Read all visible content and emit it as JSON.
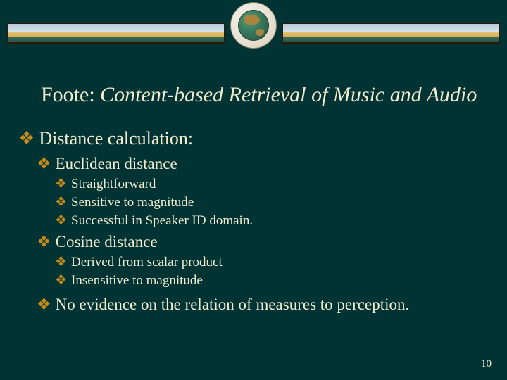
{
  "colors": {
    "background": "#003333",
    "text": "#f3eccf",
    "bullet": "#c48a1a"
  },
  "title": {
    "lead": "Foote: ",
    "rest": "Content-based Retrieval of Music and Audio"
  },
  "bullets": {
    "l1": "Distance calculation:",
    "euclid": {
      "label": "Euclidean distance",
      "items": [
        "Straightforward",
        "Sensitive to magnitude",
        "Successful in Speaker ID domain."
      ]
    },
    "cosine": {
      "label": "Cosine distance",
      "items": [
        "Derived from scalar product",
        "Insensitive to magnitude"
      ]
    },
    "final": "No evidence on the relation of measures to perception."
  },
  "pageNumber": "10",
  "bulletGlyph": "❖"
}
